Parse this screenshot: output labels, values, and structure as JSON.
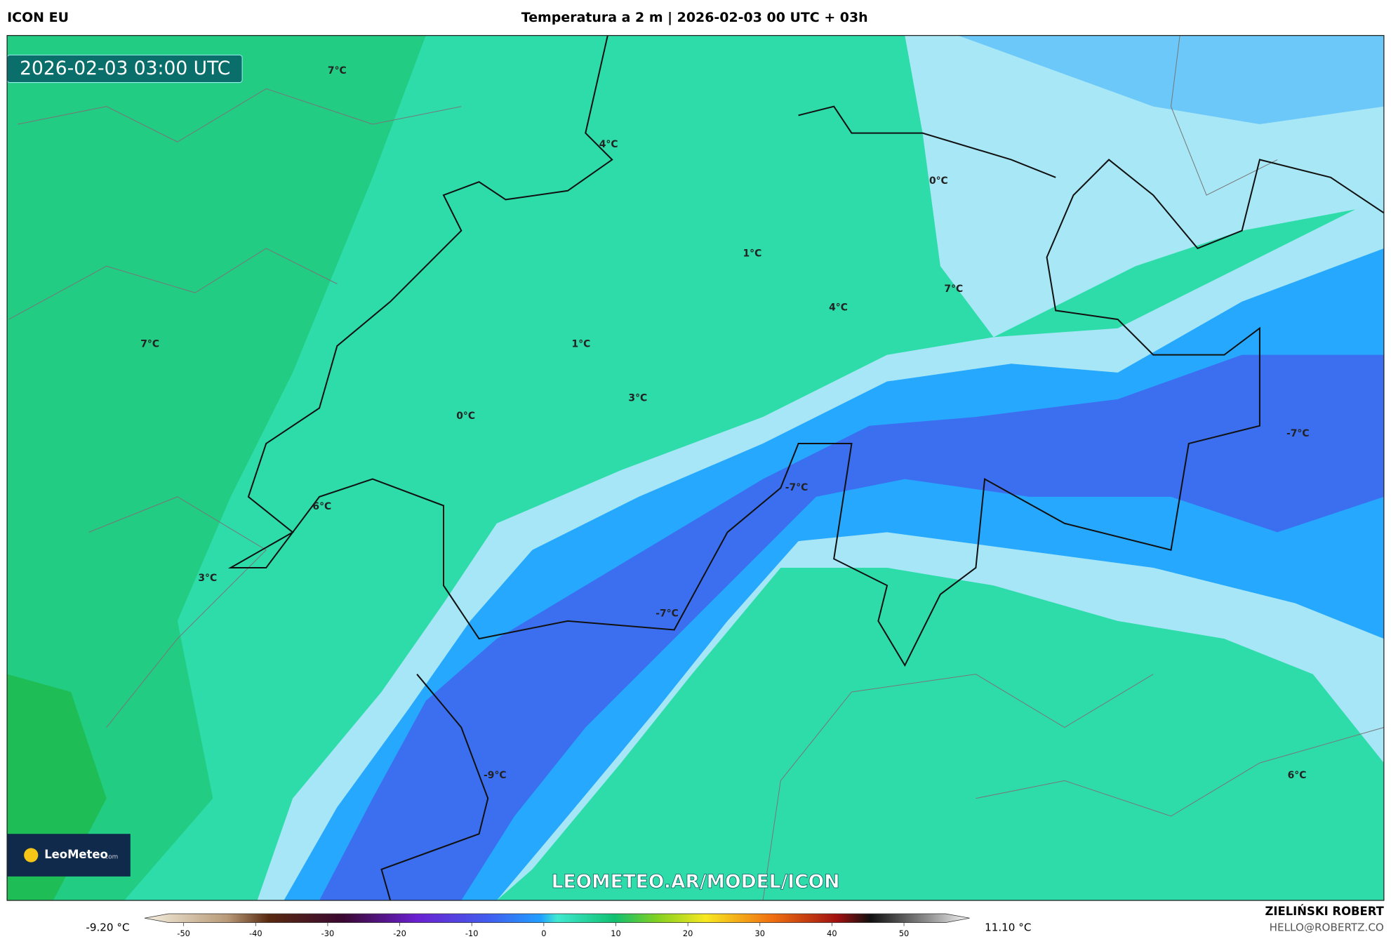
{
  "header": {
    "model": "ICON EU",
    "title": "Temperatura a 2 m | 2026-02-03 00 UTC + 03h"
  },
  "map": {
    "timestamp": "2026-02-03 03:00 UTC",
    "watermark": "LEOMETEO.AR/MODEL/ICON",
    "logo": "LeoMeteo",
    "logo_suffix": ".com",
    "labels": [
      "7°C",
      "4°C",
      "0°C",
      "1°C",
      "7°C",
      "4°C",
      "7°C",
      "1°C",
      "3°C",
      "0°C",
      "-7°C",
      "-7°C",
      "6°C",
      "3°C",
      "-7°C",
      "-9°C",
      "6°C"
    ]
  },
  "colorbar": {
    "min_label": "-9.20 °C",
    "max_label": "11.10 °C",
    "ticks": [
      -50,
      -40,
      -30,
      -20,
      -10,
      0,
      10,
      20,
      30,
      40,
      50
    ]
  },
  "footer": {
    "author": "ZIELIŃSKI ROBERT",
    "contact": "HELLO@ROBERTZ.CO"
  }
}
